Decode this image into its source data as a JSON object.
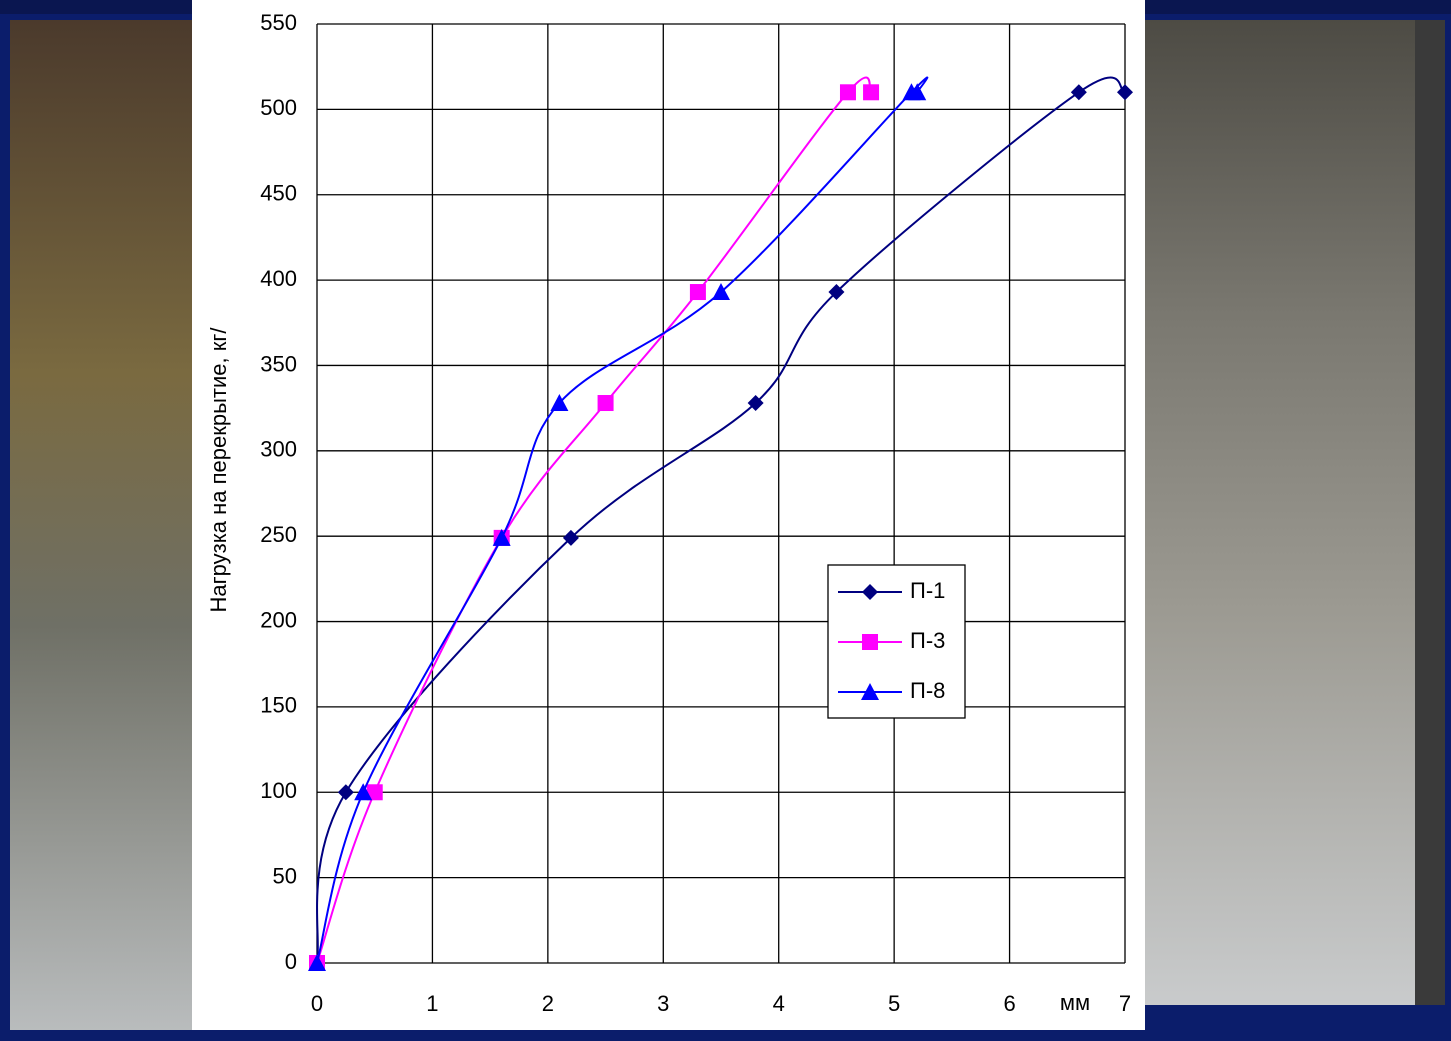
{
  "chart_data": {
    "type": "line",
    "ylabel": "Нагрузка на перекрытие, кг/",
    "xlabel": "мм",
    "xlim": [
      0,
      7
    ],
    "xticks": [
      0,
      1,
      2,
      3,
      4,
      5,
      6,
      7
    ],
    "ylim": [
      0,
      550
    ],
    "yticks": [
      0,
      50,
      100,
      150,
      200,
      250,
      300,
      350,
      400,
      450,
      500,
      550
    ],
    "grid": true,
    "series": [
      {
        "name": "П-1",
        "color": "#000080",
        "marker": "diamond",
        "x": [
          0,
          0.25,
          2.2,
          3.8,
          4.5,
          6.6,
          7
        ],
        "values": [
          0,
          100,
          249,
          328,
          393,
          510,
          510
        ]
      },
      {
        "name": "П-3",
        "color": "#ff00ff",
        "marker": "square",
        "x": [
          0,
          0.5,
          1.6,
          2.5,
          3.3,
          4.6,
          4.8
        ],
        "values": [
          0,
          100,
          249,
          328,
          393,
          510,
          510
        ]
      },
      {
        "name": "П-8",
        "color": "#0000ff",
        "marker": "triangle",
        "x": [
          0,
          0.4,
          1.6,
          2.1,
          3.5,
          5.15,
          5.2
        ],
        "values": [
          0,
          100,
          249,
          328,
          393,
          510,
          510
        ]
      }
    ]
  }
}
